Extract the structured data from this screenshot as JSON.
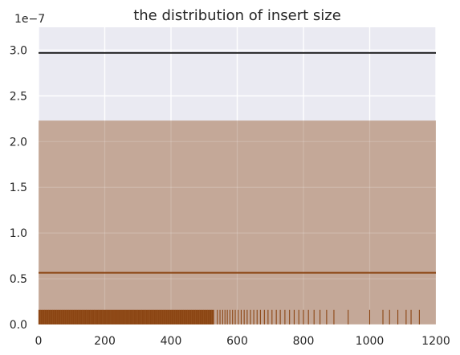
{
  "chart_data": {
    "type": "histogram",
    "title": "the distribution of insert size",
    "xlabel": "",
    "ylabel": "",
    "y_scale_label": "1e−7",
    "xlim": [
      0,
      1200
    ],
    "ylim": [
      0,
      3.25e-07
    ],
    "x_ticks": [
      0,
      200,
      400,
      600,
      800,
      1000,
      1200
    ],
    "x_tick_labels": [
      "0",
      "200",
      "400",
      "600",
      "800",
      "1000",
      "1200"
    ],
    "y_ticks": [
      0,
      5e-08,
      1e-07,
      1.5e-07,
      2e-07,
      2.5e-07,
      3e-07
    ],
    "y_tick_labels": [
      "0.0",
      "0.5",
      "1.0",
      "1.5",
      "2.0",
      "2.5",
      "3.0"
    ],
    "grid": true,
    "style": "seaborn-darkgrid",
    "histogram_bar": {
      "x_start": 0,
      "x_end": 1200,
      "height": 2.23e-07
    },
    "horizontal_lines": [
      {
        "y": 2.97e-07,
        "color": "#262626"
      },
      {
        "y": 5.65e-08,
        "color": "#8B4513"
      }
    ],
    "rug": {
      "height": 1.6e-08,
      "dense_range": [
        0,
        530
      ],
      "sparse_values": [
        540,
        548,
        556,
        563,
        570,
        578,
        586,
        594,
        603,
        612,
        621,
        630,
        640,
        650,
        660,
        670,
        682,
        693,
        705,
        718,
        730,
        744,
        758,
        772,
        786,
        800,
        815,
        832,
        850,
        870,
        892,
        935,
        1000,
        1040,
        1060,
        1085,
        1110,
        1125,
        1150
      ]
    },
    "colors": {
      "background": "#EAEAF2",
      "grid": "#FFFFFF",
      "bar": "#C4A898",
      "rug": "#8B4513",
      "line_dark": "#262626",
      "line_brown": "#8B4513"
    }
  }
}
